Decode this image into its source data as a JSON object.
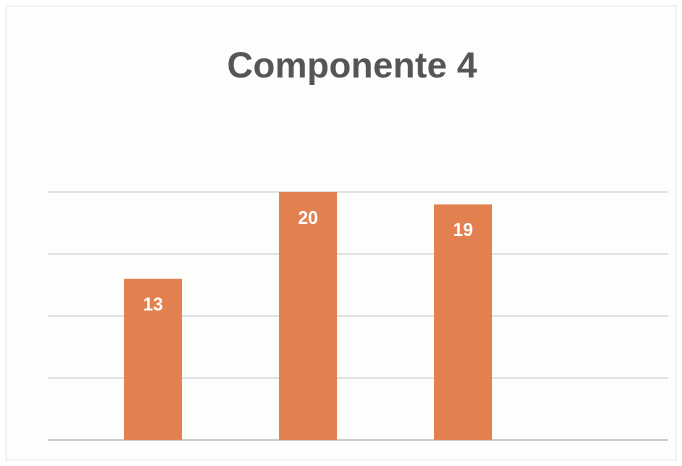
{
  "chart_data": {
    "type": "bar",
    "title": "Componente 4",
    "categories": [
      null,
      null,
      null
    ],
    "values": [
      13,
      20,
      19
    ],
    "color": "#e2804f",
    "ylim": [
      0,
      25
    ],
    "yticks": [
      0,
      5,
      10,
      15,
      20
    ],
    "grid": true
  }
}
